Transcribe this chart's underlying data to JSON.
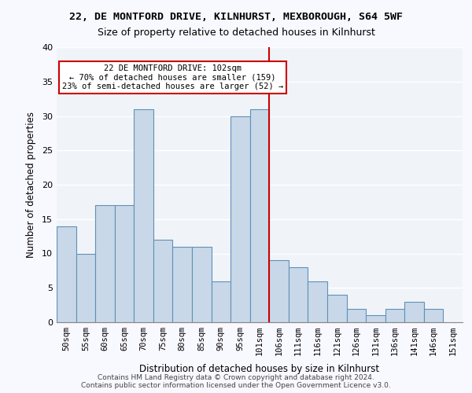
{
  "title_line1": "22, DE MONTFORD DRIVE, KILNHURST, MEXBOROUGH, S64 5WF",
  "title_line2": "Size of property relative to detached houses in Kilnhurst",
  "xlabel": "Distribution of detached houses by size in Kilnhurst",
  "ylabel": "Number of detached properties",
  "categories": [
    "50sqm",
    "55sqm",
    "60sqm",
    "65sqm",
    "70sqm",
    "75sqm",
    "80sqm",
    "85sqm",
    "90sqm",
    "95sqm",
    "101sqm",
    "106sqm",
    "111sqm",
    "116sqm",
    "121sqm",
    "126sqm",
    "131sqm",
    "136sqm",
    "141sqm",
    "146sqm",
    "151sqm"
  ],
  "values": [
    14,
    10,
    17,
    17,
    31,
    12,
    11,
    11,
    6,
    30,
    31,
    9,
    8,
    6,
    4,
    2,
    1,
    2,
    3,
    2,
    0
  ],
  "bar_color": "#c8d8e8",
  "bar_edge_color": "#6090b8",
  "background_color": "#f0f4f8",
  "grid_color": "#ffffff",
  "vline_x": 10.5,
  "vline_color": "#cc0000",
  "annotation_text": "22 DE MONTFORD DRIVE: 102sqm\n← 70% of detached houses are smaller (159)\n23% of semi-detached houses are larger (52) →",
  "annotation_box_color": "#ffffff",
  "annotation_box_edge": "#cc0000",
  "footer_text": "Contains HM Land Registry data © Crown copyright and database right 2024.\nContains public sector information licensed under the Open Government Licence v3.0.",
  "ylim": [
    0,
    40
  ],
  "yticks": [
    0,
    5,
    10,
    15,
    20,
    25,
    30,
    35,
    40
  ]
}
